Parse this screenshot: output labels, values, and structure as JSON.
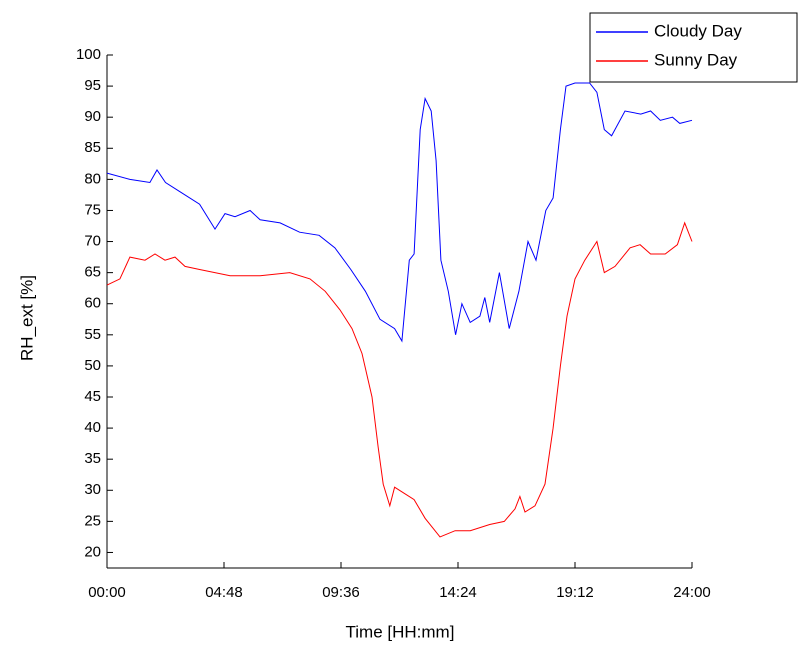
{
  "chart_data": {
    "type": "line",
    "x_label": "Time [HH:mm]",
    "y_label": "RH_ext [%]",
    "xlim": [
      0,
      24
    ],
    "ylim": [
      17.5,
      100
    ],
    "xticks": [
      {
        "value": 0,
        "label": "00:00"
      },
      {
        "value": 4.8,
        "label": "04:48"
      },
      {
        "value": 9.6,
        "label": "09:36"
      },
      {
        "value": 14.4,
        "label": "14:24"
      },
      {
        "value": 19.2,
        "label": "19:12"
      },
      {
        "value": 24,
        "label": "24:00"
      }
    ],
    "yticks": [
      20,
      25,
      30,
      35,
      40,
      45,
      50,
      55,
      60,
      65,
      70,
      75,
      80,
      85,
      90,
      95,
      100
    ],
    "legend": "top-right",
    "series": [
      {
        "name": "Cloudy Day",
        "color": "#0000ff",
        "x": [
          0,
          0.94,
          1.76,
          2.05,
          2.4,
          3.0,
          3.8,
          4.43,
          4.84,
          5.25,
          5.87,
          6.28,
          7.1,
          7.9,
          8.7,
          9.35,
          10.0,
          10.6,
          11.2,
          11.8,
          12.1,
          12.4,
          12.6,
          12.85,
          13.05,
          13.3,
          13.5,
          13.7,
          14.0,
          14.3,
          14.56,
          14.9,
          15.3,
          15.5,
          15.7,
          16.1,
          16.5,
          16.9,
          17.27,
          17.6,
          18.0,
          18.3,
          18.6,
          18.83,
          19.2,
          19.8,
          20.1,
          20.4,
          20.7,
          21.25,
          21.9,
          22.3,
          22.7,
          23.2,
          23.5,
          24.0
        ],
        "values": [
          81,
          80,
          79.5,
          81.5,
          79.5,
          78,
          76,
          72,
          74.5,
          74,
          75,
          73.5,
          73,
          71.5,
          71,
          69,
          65.5,
          62,
          57.5,
          56,
          54,
          67,
          68,
          88,
          93,
          91,
          83,
          67,
          62,
          55,
          60,
          57,
          58,
          61,
          57,
          65,
          56,
          62,
          70,
          67,
          75,
          77,
          88,
          95,
          95.5,
          95.5,
          94,
          88,
          87,
          91,
          90.5,
          91,
          89.5,
          90,
          89,
          89.5
        ]
      },
      {
        "name": "Sunny Day",
        "color": "#ff0000",
        "x": [
          0,
          0.53,
          0.94,
          1.56,
          1.97,
          2.38,
          2.79,
          3.2,
          3.8,
          5.05,
          6.28,
          7.5,
          8.33,
          8.95,
          9.56,
          10.05,
          10.46,
          10.87,
          11.12,
          11.33,
          11.6,
          11.8,
          12.2,
          12.6,
          13.05,
          13.66,
          14.28,
          14.9,
          15.7,
          16.3,
          16.74,
          16.94,
          17.15,
          17.56,
          17.97,
          18.3,
          18.6,
          18.87,
          19.2,
          19.6,
          20.1,
          20.4,
          20.84,
          21.46,
          21.87,
          22.3,
          22.9,
          23.4,
          23.7,
          24.0
        ],
        "values": [
          63,
          64,
          67.5,
          67,
          68,
          67,
          67.5,
          66,
          65.5,
          64.5,
          64.5,
          65,
          64,
          62,
          59,
          56,
          52,
          45,
          37,
          31,
          27.5,
          30.5,
          29.5,
          28.5,
          25.5,
          22.5,
          23.5,
          23.5,
          24.5,
          25,
          27,
          29,
          26.5,
          27.5,
          31,
          40,
          50,
          58,
          64,
          67,
          70,
          65,
          66,
          69,
          69.5,
          68,
          68,
          69.5,
          73,
          70
        ]
      }
    ]
  }
}
